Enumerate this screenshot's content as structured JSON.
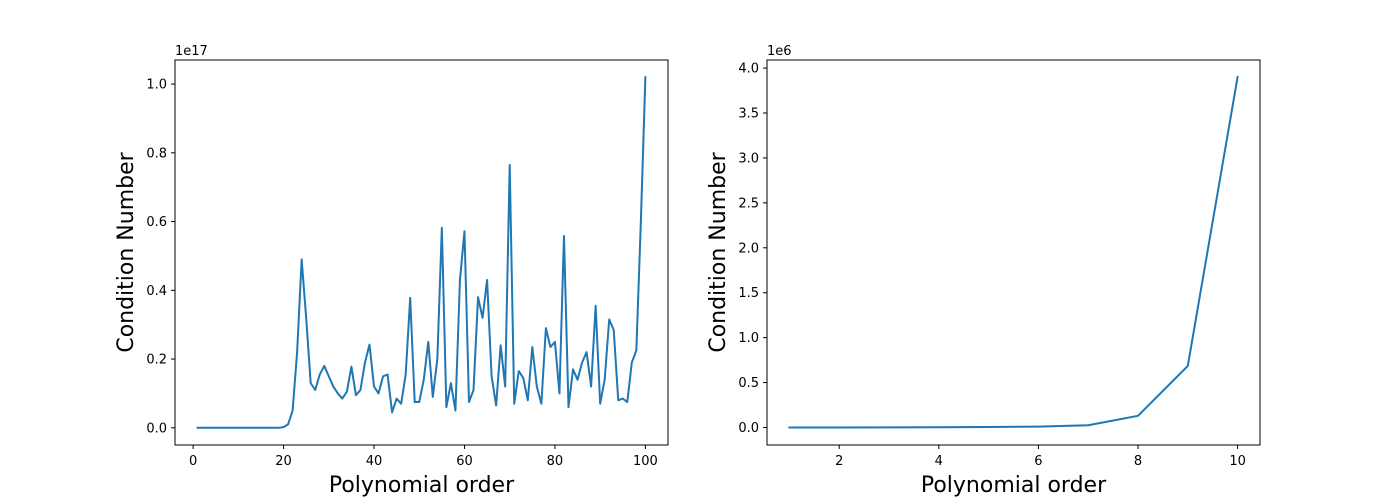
{
  "chart_data": [
    {
      "type": "line",
      "xlabel": "Polynomial order",
      "ylabel": "Condition Number",
      "y_offset_label": "1e17",
      "xlim": [
        -4,
        105
      ],
      "ylim": [
        -0.05,
        1.07
      ],
      "xticks": [
        0,
        20,
        40,
        60,
        80,
        100
      ],
      "xtick_labels": [
        "0",
        "20",
        "40",
        "60",
        "80",
        "100"
      ],
      "yticks": [
        0.0,
        0.2,
        0.4,
        0.6,
        0.8,
        1.0
      ],
      "ytick_labels": [
        "0.0",
        "0.2",
        "0.4",
        "0.6",
        "0.8",
        "1.0"
      ],
      "grid": false,
      "color": "#1f77b4",
      "series": [
        {
          "x": [
            1,
            2,
            3,
            4,
            5,
            6,
            7,
            8,
            9,
            10,
            11,
            12,
            13,
            14,
            15,
            16,
            17,
            18,
            19,
            20,
            21,
            22,
            23,
            24,
            25,
            26,
            27,
            28,
            29,
            30,
            31,
            32,
            33,
            34,
            35,
            36,
            37,
            38,
            39,
            40,
            41,
            42,
            43,
            44,
            45,
            46,
            47,
            48,
            49,
            50,
            51,
            52,
            53,
            54,
            55,
            56,
            57,
            58,
            59,
            60,
            61,
            62,
            63,
            64,
            65,
            66,
            67,
            68,
            69,
            70,
            71,
            72,
            73,
            74,
            75,
            76,
            77,
            78,
            79,
            80,
            81,
            82,
            83,
            84,
            85,
            86,
            87,
            88,
            89,
            90,
            91,
            92,
            93,
            94,
            95,
            96,
            97,
            98,
            99,
            100
          ],
          "y": [
            0,
            0,
            0,
            0,
            0,
            0,
            0,
            0,
            0,
            0,
            0,
            0,
            0,
            0,
            0,
            0,
            0,
            0,
            0,
            0.002,
            0.01,
            0.05,
            0.22,
            0.49,
            0.32,
            0.13,
            0.11,
            0.155,
            0.18,
            0.15,
            0.12,
            0.1,
            0.085,
            0.105,
            0.178,
            0.095,
            0.11,
            0.19,
            0.242,
            0.12,
            0.1,
            0.15,
            0.155,
            0.045,
            0.085,
            0.07,
            0.155,
            0.378,
            0.075,
            0.075,
            0.14,
            0.25,
            0.09,
            0.2,
            0.582,
            0.06,
            0.13,
            0.05,
            0.43,
            0.572,
            0.075,
            0.11,
            0.38,
            0.32,
            0.43,
            0.15,
            0.065,
            0.24,
            0.12,
            0.765,
            0.07,
            0.165,
            0.145,
            0.08,
            0.235,
            0.12,
            0.07,
            0.29,
            0.235,
            0.25,
            0.1,
            0.558,
            0.06,
            0.17,
            0.14,
            0.19,
            0.22,
            0.12,
            0.355,
            0.07,
            0.14,
            0.315,
            0.285,
            0.08,
            0.085,
            0.075,
            0.19,
            0.225,
            0.6,
            1.02
          ]
        }
      ]
    },
    {
      "type": "line",
      "xlabel": "Polynomial order",
      "ylabel": "Condition Number",
      "y_offset_label": "1e6",
      "xlim": [
        0.55,
        10.45
      ],
      "ylim": [
        -0.195,
        4.09
      ],
      "xticks": [
        2,
        4,
        6,
        8,
        10
      ],
      "xtick_labels": [
        "2",
        "4",
        "6",
        "8",
        "10"
      ],
      "yticks": [
        0.0,
        0.5,
        1.0,
        1.5,
        2.0,
        2.5,
        3.0,
        3.5,
        4.0
      ],
      "ytick_labels": [
        "0.0",
        "0.5",
        "1.0",
        "1.5",
        "2.0",
        "2.5",
        "3.0",
        "3.5",
        "4.0"
      ],
      "grid": false,
      "color": "#1f77b4",
      "series": [
        {
          "x": [
            1,
            2,
            3,
            4,
            5,
            6,
            7,
            8,
            9,
            10
          ],
          "y": [
            0,
            0.0001,
            0.0005,
            0.002,
            0.005,
            0.01,
            0.025,
            0.13,
            0.685,
            3.9
          ]
        }
      ]
    }
  ]
}
